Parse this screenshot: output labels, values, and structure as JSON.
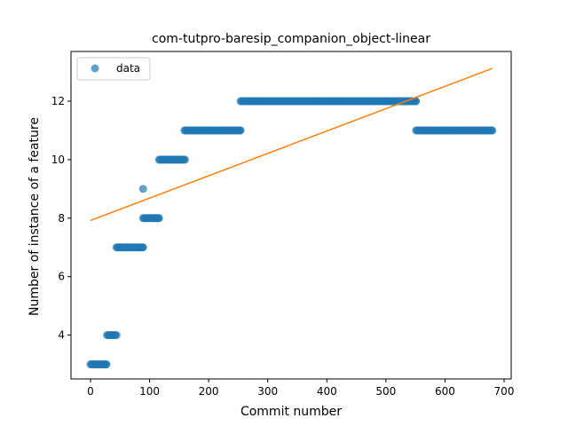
{
  "chart_data": {
    "type": "scatter",
    "title": "com-tutpro-baresip_companion_object-linear",
    "xlabel": "Commit number",
    "ylabel": "Number of instance of a feature",
    "xlim": [
      -33,
      712
    ],
    "ylim": [
      2.5,
      13.7
    ],
    "xticks": [
      0,
      100,
      200,
      300,
      400,
      500,
      600,
      700
    ],
    "yticks": [
      4,
      6,
      8,
      10,
      12
    ],
    "grid": false,
    "legend": {
      "position": "upper-left",
      "entries": [
        "data"
      ]
    },
    "colors": {
      "data": "#1f77b4",
      "fit": "#ff7f0e"
    },
    "series": [
      {
        "name": "data",
        "kind": "scatter",
        "segments": [
          {
            "x_start": 0,
            "x_end": 27,
            "y": 3
          },
          {
            "x_start": 28,
            "x_end": 44,
            "y": 4
          },
          {
            "x_start": 44,
            "x_end": 89,
            "y": 7
          },
          {
            "x_start": 89,
            "x_end": 89,
            "y": 9
          },
          {
            "x_start": 89,
            "x_end": 116,
            "y": 8
          },
          {
            "x_start": 116,
            "x_end": 160,
            "y": 10
          },
          {
            "x_start": 159,
            "x_end": 254,
            "y": 11
          },
          {
            "x_start": 254,
            "x_end": 551,
            "y": 12
          },
          {
            "x_start": 551,
            "x_end": 680,
            "y": 11
          }
        ]
      },
      {
        "name": "",
        "kind": "line",
        "x": [
          0,
          680
        ],
        "y": [
          7.92,
          13.12
        ]
      }
    ]
  }
}
